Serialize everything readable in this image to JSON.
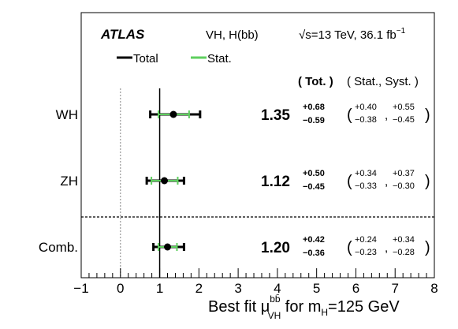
{
  "chart_data": {
    "type": "scatter",
    "atlas_label": "ATLAS",
    "channel_label": "VH, H(bb)",
    "energy_label": "√s=13 TeV, 36.1 fb",
    "energy_exp": "−1",
    "legend": [
      {
        "name": "Total",
        "color": "#000000"
      },
      {
        "name": "Stat.",
        "color": "#5ecf5e"
      }
    ],
    "header_tot": "( Tot. )",
    "header_stat_syst": "( Stat., Syst. )",
    "xlabel": {
      "prefix": "Best fit μ",
      "sup": "bb̄",
      "sub": "VH",
      "mid": " for m",
      "msub": "H",
      "suffix": "=125 GeV"
    },
    "xlim": [
      -1,
      8
    ],
    "xticks": [
      "−1",
      "0",
      "1",
      "2",
      "3",
      "4",
      "5",
      "6",
      "7",
      "8"
    ],
    "reference_lines": [
      0,
      1
    ],
    "points": [
      {
        "label": "WH",
        "value": 1.35,
        "value_text": "1.35",
        "tot_up": 0.68,
        "tot_down": 0.59,
        "tot_up_text": "+0.68",
        "tot_down_text": "−0.59",
        "stat_up": 0.4,
        "stat_down": 0.38,
        "stat_up_text": "+0.40",
        "stat_down_text": "−0.38",
        "syst_up_text": "+0.55",
        "syst_down_text": "−0.45"
      },
      {
        "label": "ZH",
        "value": 1.12,
        "value_text": "1.12",
        "tot_up": 0.5,
        "tot_down": 0.45,
        "tot_up_text": "+0.50",
        "tot_down_text": "−0.45",
        "stat_up": 0.34,
        "stat_down": 0.33,
        "stat_up_text": "+0.34",
        "stat_down_text": "−0.33",
        "syst_up_text": "+0.37",
        "syst_down_text": "−0.30"
      },
      {
        "label": "Comb.",
        "value": 1.2,
        "value_text": "1.20",
        "tot_up": 0.42,
        "tot_down": 0.36,
        "tot_up_text": "+0.42",
        "tot_down_text": "−0.36",
        "stat_up": 0.24,
        "stat_down": 0.23,
        "stat_up_text": "+0.24",
        "stat_down_text": "−0.23",
        "syst_up_text": "+0.34",
        "syst_down_text": "−0.28"
      }
    ]
  }
}
